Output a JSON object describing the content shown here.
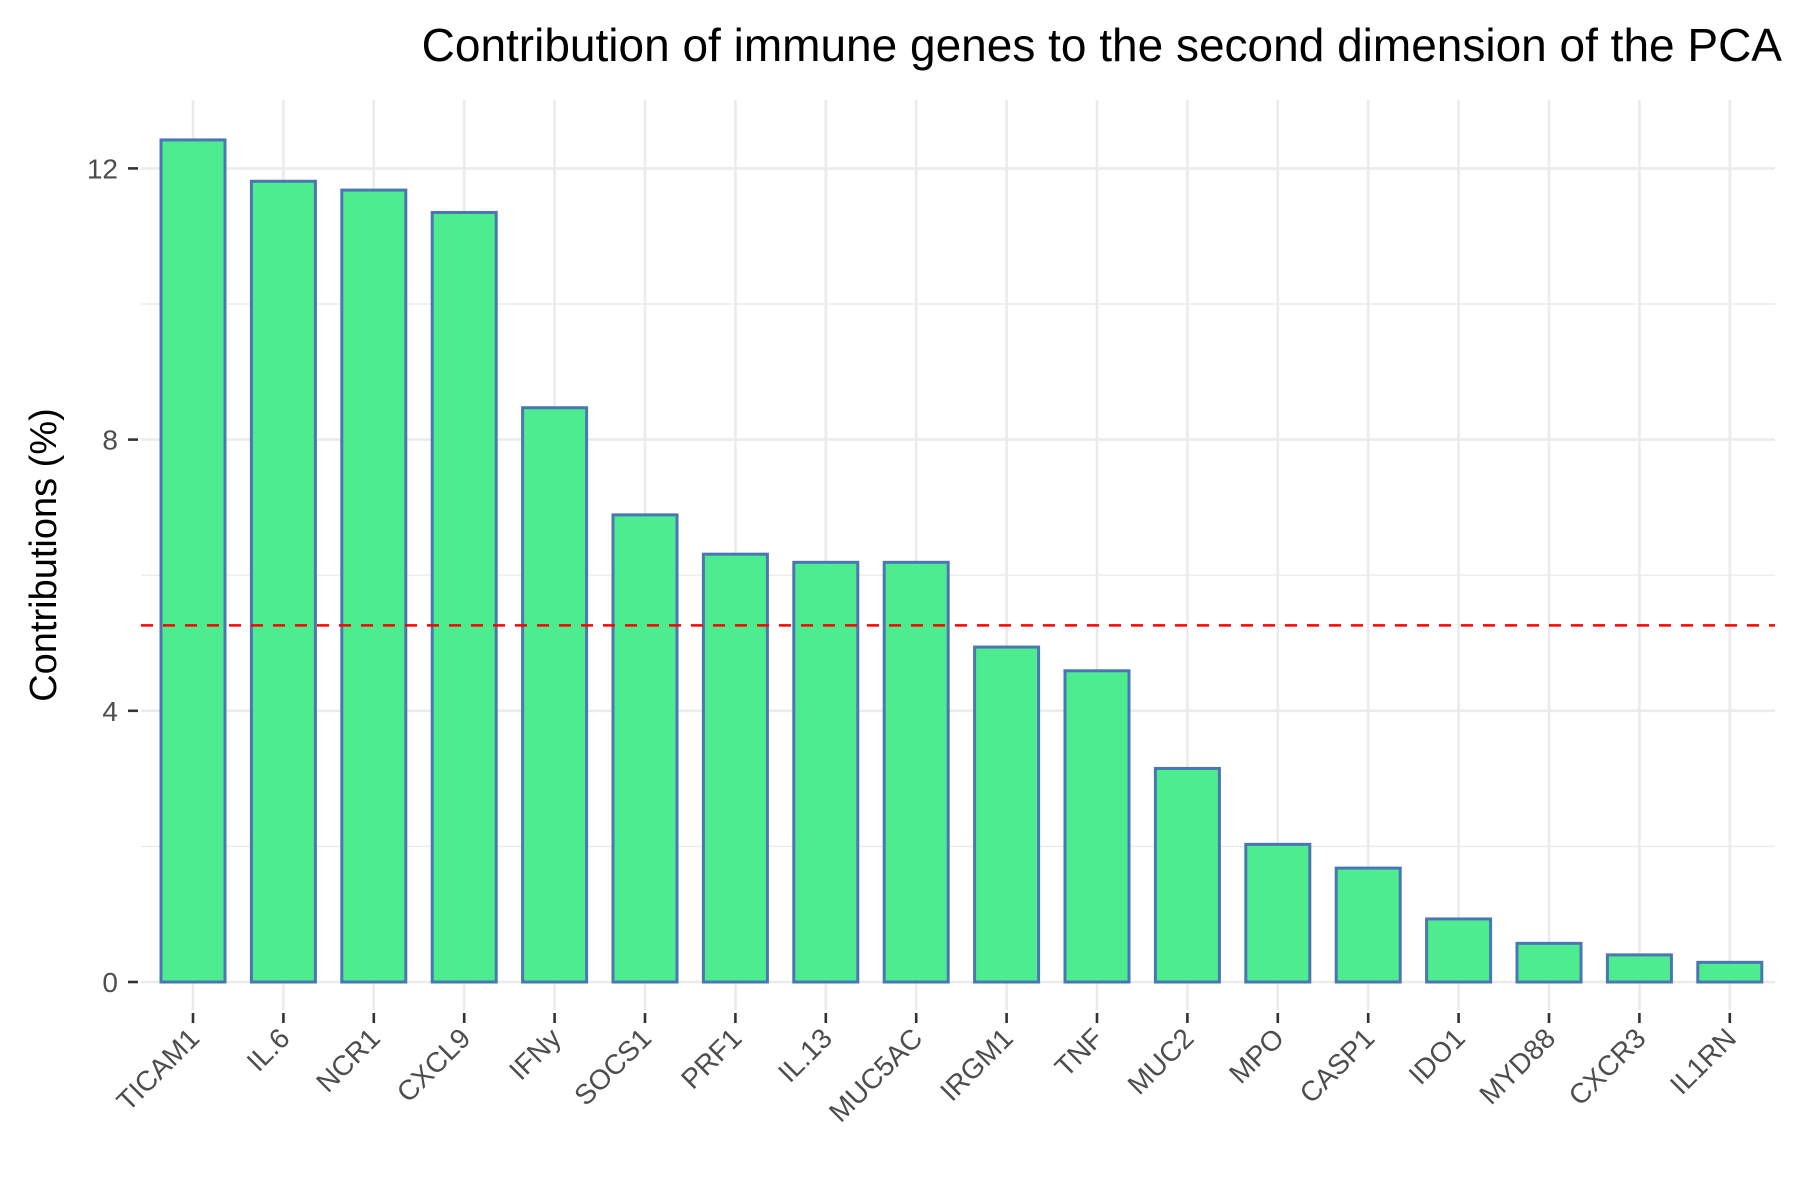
{
  "chart_data": {
    "type": "bar",
    "title": "Contribution of immune genes to the second dimension of the PCA",
    "xlabel": "",
    "ylabel": "Contributions (%)",
    "ylim": [
      0,
      13
    ],
    "yticks": [
      0,
      4,
      8,
      12
    ],
    "grid": true,
    "categories": [
      "TICAM1",
      "IL.6",
      "NCR1",
      "CXCL9",
      "IFNy",
      "SOCS1",
      "PRF1",
      "IL.13",
      "MUC5AC",
      "IRGM1",
      "TNF",
      "MUC2",
      "MPO",
      "CASP1",
      "IDO1",
      "MYD88",
      "CXCR3",
      "IL1RN"
    ],
    "values": [
      12.42,
      11.81,
      11.68,
      11.35,
      8.47,
      6.89,
      6.31,
      6.19,
      6.19,
      4.94,
      4.59,
      3.15,
      2.03,
      1.68,
      0.93,
      0.57,
      0.4,
      0.29
    ],
    "reference_line": {
      "value": 5.26,
      "style": "dashed"
    },
    "colors": {
      "bar_fill": "#4ded8f",
      "bar_stroke": "#4a76b4",
      "reference_line": "#ff0000",
      "grid": "#ebebeb",
      "tick_text": "#4d4d4d",
      "text": "#000000"
    }
  }
}
